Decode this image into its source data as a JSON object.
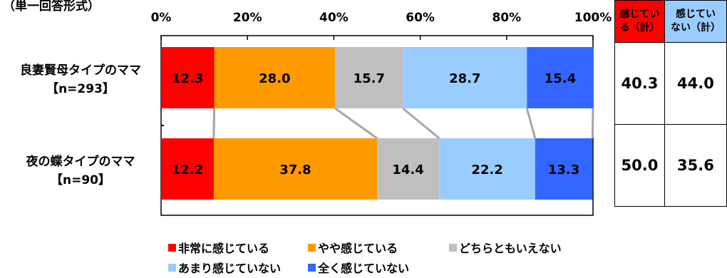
{
  "partial_label": "（単一回答形式）",
  "chart_data": {
    "type": "bar",
    "orientation": "horizontal",
    "stacked": true,
    "percent_axis": true,
    "xlim": [
      0,
      100
    ],
    "xticks": [
      "0%",
      "20%",
      "40%",
      "60%",
      "80%",
      "100%"
    ],
    "categories": [
      "良妻賢母タイプのママ",
      "夜の蝶タイプのママ"
    ],
    "category_sub": [
      "【n=293】",
      "【n=90】"
    ],
    "series": [
      {
        "name": "非常に感じている",
        "color": "#FF0000",
        "values": [
          12.3,
          12.2
        ]
      },
      {
        "name": "やや感じている",
        "color": "#FF9900",
        "values": [
          28.0,
          37.8
        ]
      },
      {
        "name": "どちらともいえない",
        "color": "#BFBFBF",
        "values": [
          15.7,
          14.4
        ]
      },
      {
        "name": "あまり感じていない",
        "color": "#99CCFF",
        "values": [
          28.7,
          22.2
        ]
      },
      {
        "name": "全く感じていない",
        "color": "#3366FF",
        "values": [
          15.4,
          13.3
        ]
      }
    ],
    "labels": [
      [
        "12.3",
        "28.0",
        "15.7",
        "28.7",
        "15.4"
      ],
      [
        "12.2",
        "37.8",
        "14.4",
        "22.2",
        "13.3"
      ]
    ],
    "legend_position": "bottom"
  },
  "summary_table": {
    "headers": [
      "感じてい\nる（計）",
      "感じてい\nない（計）"
    ],
    "header_colors": [
      "#FF0000",
      "#99CCFF"
    ],
    "rows": [
      [
        "40.3",
        "44.0"
      ],
      [
        "50.0",
        "35.6"
      ]
    ]
  }
}
